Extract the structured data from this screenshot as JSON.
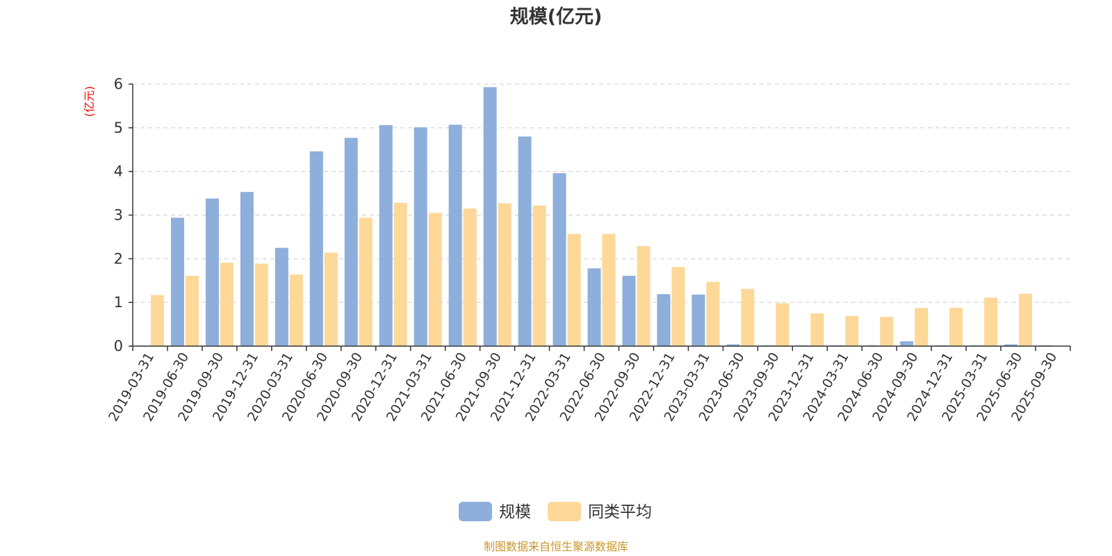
{
  "chart_data": {
    "type": "bar",
    "title": "规模(亿元)",
    "ylabel": "(亿元)",
    "xlabel": "",
    "ylim": [
      0,
      6
    ],
    "yticks": [
      0,
      1,
      2,
      3,
      4,
      5,
      6
    ],
    "grid": true,
    "legend_position": "bottom-center",
    "categories": [
      "2019-03-31",
      "2019-06-30",
      "2019-09-30",
      "2019-12-31",
      "2020-03-31",
      "2020-06-30",
      "2020-09-30",
      "2020-12-31",
      "2021-03-31",
      "2021-06-30",
      "2021-09-30",
      "2021-12-31",
      "2022-03-31",
      "2022-06-30",
      "2022-09-30",
      "2022-12-31",
      "2023-03-31",
      "2023-06-30",
      "2023-09-30",
      "2023-12-31",
      "2024-03-31",
      "2024-06-30",
      "2024-09-30",
      "2024-12-31",
      "2025-03-31",
      "2025-06-30",
      "2025-09-30"
    ],
    "series": [
      {
        "name": "规模",
        "color": "#8eaedb",
        "values": [
          0.01,
          2.94,
          3.38,
          3.53,
          2.25,
          4.46,
          4.77,
          5.06,
          5.01,
          5.07,
          5.93,
          4.8,
          3.96,
          1.78,
          1.61,
          1.19,
          1.18,
          0.04,
          0.02,
          0.02,
          0.02,
          0.02,
          0.11,
          0.02,
          0.02,
          0.04,
          0.02
        ]
      },
      {
        "name": "同类平均",
        "color": "#fdd898",
        "values": [
          1.17,
          1.61,
          1.91,
          1.89,
          1.64,
          2.14,
          2.94,
          3.28,
          3.05,
          3.15,
          3.27,
          3.22,
          2.57,
          2.57,
          2.29,
          1.81,
          1.47,
          1.31,
          0.98,
          0.75,
          0.69,
          0.67,
          0.87,
          0.88,
          1.11,
          1.2,
          null
        ]
      }
    ],
    "source": "制图数据来自恒生聚源数据库"
  }
}
